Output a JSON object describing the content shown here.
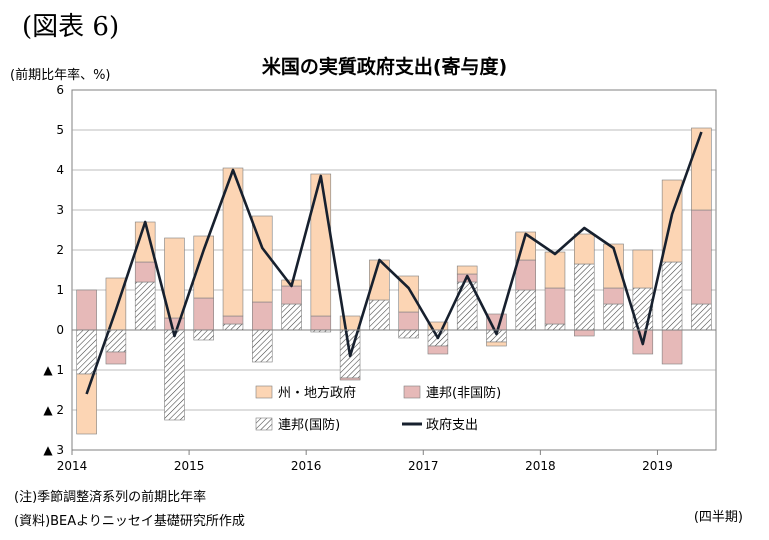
{
  "figure_label": "(図表 6)",
  "notes": {
    "note1": "(注)季節調整済系列の前期比年率",
    "note2": "(資料)BEAよりニッセイ基礎研究所作成"
  },
  "colors": {
    "state_local": "#fcd5b4",
    "federal_nondefense": "#e6b9b8",
    "federal_defense_hatch": "#404040",
    "total_line": "#17202e",
    "axis": "#808080",
    "grid": "#a6a6a6"
  },
  "chart_data": {
    "type": "bar",
    "stacked": true,
    "title": "米国の実質政府支出(寄与度)",
    "ylabel": "(前期比年率、%)",
    "xlabel": "",
    "period_label": "(四半期)",
    "ylim": [
      -3,
      6
    ],
    "yticks": [
      -3,
      -2,
      -1,
      0,
      1,
      2,
      3,
      4,
      5,
      6
    ],
    "ytick_labels": [
      "▲ 3",
      "▲ 2",
      "▲ 1",
      "0",
      "1",
      "2",
      "3",
      "4",
      "5",
      "6"
    ],
    "grid": true,
    "legend_position": "bottom-center",
    "categories": [
      "2014Q1",
      "2014Q2",
      "2014Q3",
      "2014Q4",
      "2015Q1",
      "2015Q2",
      "2015Q3",
      "2015Q4",
      "2016Q1",
      "2016Q2",
      "2016Q3",
      "2016Q4",
      "2017Q1",
      "2017Q2",
      "2017Q3",
      "2017Q4",
      "2018Q1",
      "2018Q2",
      "2018Q3",
      "2018Q4",
      "2019Q1",
      "2019Q2"
    ],
    "year_labels": [
      {
        "label": "2014",
        "index": 0
      },
      {
        "label": "2015",
        "index": 4
      },
      {
        "label": "2016",
        "index": 8
      },
      {
        "label": "2017",
        "index": 12
      },
      {
        "label": "2018",
        "index": 16
      },
      {
        "label": "2019",
        "index": 20
      }
    ],
    "series": [
      {
        "name": "州・地方政府",
        "type": "bar",
        "values": [
          -1.5,
          1.3,
          1.0,
          2.0,
          1.55,
          3.7,
          2.15,
          0.15,
          3.55,
          0.35,
          1.0,
          0.9,
          0.2,
          0.2,
          -0.1,
          0.7,
          0.9,
          0.75,
          1.1,
          0.95,
          2.05,
          2.05
        ]
      },
      {
        "name": "連邦(非国防)",
        "type": "bar",
        "values": [
          1.0,
          -0.3,
          0.5,
          0.3,
          0.8,
          0.2,
          0.7,
          0.45,
          0.35,
          -0.05,
          0.0,
          0.45,
          -0.2,
          0.2,
          0.4,
          0.75,
          0.9,
          -0.15,
          0.4,
          -0.6,
          -0.85,
          2.35
        ]
      },
      {
        "name": "連邦(国防)",
        "type": "bar",
        "hatched": true,
        "values": [
          -1.1,
          -0.55,
          1.2,
          -2.25,
          -0.25,
          0.15,
          -0.8,
          0.65,
          -0.05,
          -1.2,
          0.75,
          -0.2,
          -0.4,
          1.2,
          -0.3,
          1.0,
          0.15,
          1.65,
          0.65,
          1.05,
          1.7,
          0.65
        ]
      },
      {
        "name": "政府支出",
        "type": "line",
        "values": [
          -1.6,
          0.5,
          2.7,
          -0.15,
          2.0,
          4.0,
          2.05,
          1.1,
          3.85,
          -0.65,
          1.75,
          1.05,
          -0.2,
          1.35,
          -0.1,
          2.4,
          1.9,
          2.55,
          2.05,
          -0.35,
          2.9,
          4.95
        ]
      }
    ]
  }
}
